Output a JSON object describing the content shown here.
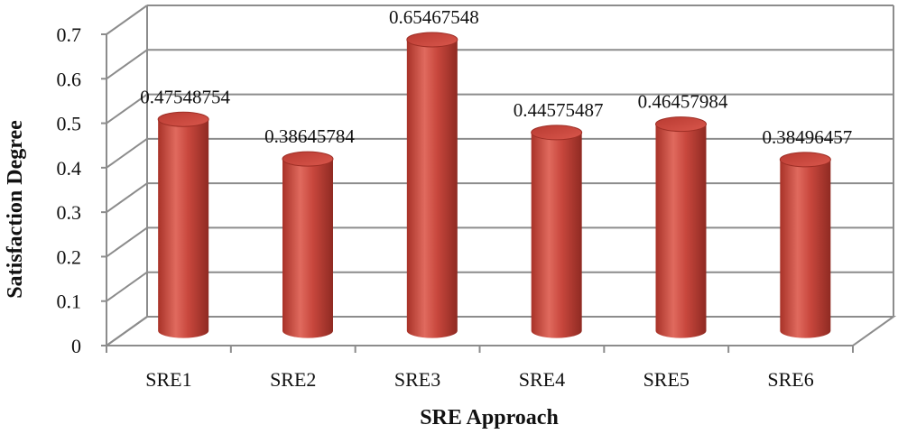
{
  "chart_data": {
    "type": "bar",
    "title": "",
    "xlabel": "SRE Approach",
    "ylabel": "Satisfaction Degree",
    "categories": [
      "SRE1",
      "SRE2",
      "SRE3",
      "SRE4",
      "SRE5",
      "SRE6"
    ],
    "values": [
      0.47548754,
      0.38645784,
      0.65467548,
      0.44575487,
      0.46457984,
      0.38496457
    ],
    "value_labels": [
      "0.47548754",
      "0.38645784",
      "0.65467548",
      "0.44575487",
      "0.46457984",
      "0.38496457"
    ],
    "yticks": [
      "0",
      "0.1",
      "0.2",
      "0.3",
      "0.4",
      "0.5",
      "0.6",
      "0.7"
    ],
    "ylim": [
      0,
      0.7
    ],
    "grid": true,
    "style": "3d-cylinder",
    "bar_color": "#c0392b",
    "legend": "none"
  }
}
